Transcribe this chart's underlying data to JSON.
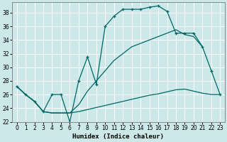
{
  "title": "",
  "xlabel": "Humidex (Indice chaleur)",
  "background_color": "#cce8e8",
  "line_color": "#006666",
  "xlim": [
    -0.5,
    23.5
  ],
  "ylim": [
    22,
    39.5
  ],
  "xtick_labels": [
    "0",
    "1",
    "2",
    "3",
    "4",
    "5",
    "6",
    "7",
    "8",
    "9",
    "10",
    "11",
    "12",
    "13",
    "14",
    "15",
    "16",
    "17",
    "18",
    "19",
    "20",
    "21",
    "22",
    "23"
  ],
  "xticks": [
    0,
    1,
    2,
    3,
    4,
    5,
    6,
    7,
    8,
    9,
    10,
    11,
    12,
    13,
    14,
    15,
    16,
    17,
    18,
    19,
    20,
    21,
    22,
    23
  ],
  "yticks": [
    22,
    24,
    26,
    28,
    30,
    32,
    34,
    36,
    38
  ],
  "series": [
    {
      "x": [
        0,
        1,
        2,
        3,
        4,
        5,
        6,
        7,
        8,
        9,
        10,
        11,
        12,
        13,
        14,
        15,
        16,
        17,
        18,
        19,
        20,
        21,
        22,
        23
      ],
      "y": [
        27.2,
        26.0,
        25.0,
        23.5,
        26.0,
        26.0,
        22.0,
        28.0,
        31.5,
        27.5,
        36.0,
        37.5,
        38.5,
        38.5,
        38.5,
        38.8,
        39.0,
        38.2,
        35.0,
        35.0,
        35.0,
        33.0,
        29.5,
        26.0
      ]
    },
    {
      "x": [
        0,
        1,
        2,
        3,
        4,
        5,
        6,
        7,
        8,
        9,
        10,
        11,
        12,
        13,
        14,
        15,
        16,
        17,
        18,
        19,
        20,
        21
      ],
      "y": [
        27.2,
        26.0,
        25.0,
        23.5,
        23.3,
        23.3,
        23.3,
        24.5,
        26.5,
        28.0,
        29.5,
        31.0,
        32.0,
        33.0,
        33.5,
        34.0,
        34.5,
        35.0,
        35.5,
        34.8,
        34.5,
        33.0
      ]
    },
    {
      "x": [
        0,
        1,
        2,
        3,
        4,
        5,
        6,
        7,
        8,
        9,
        10,
        11,
        12,
        13,
        14,
        15,
        16,
        17,
        18,
        19,
        20,
        21,
        22,
        23
      ],
      "y": [
        27.2,
        26.0,
        25.0,
        23.5,
        23.3,
        23.3,
        23.3,
        23.5,
        23.8,
        24.1,
        24.4,
        24.7,
        25.0,
        25.3,
        25.6,
        25.9,
        26.1,
        26.4,
        26.7,
        26.8,
        26.5,
        26.2,
        26.0,
        26.0
      ]
    }
  ]
}
